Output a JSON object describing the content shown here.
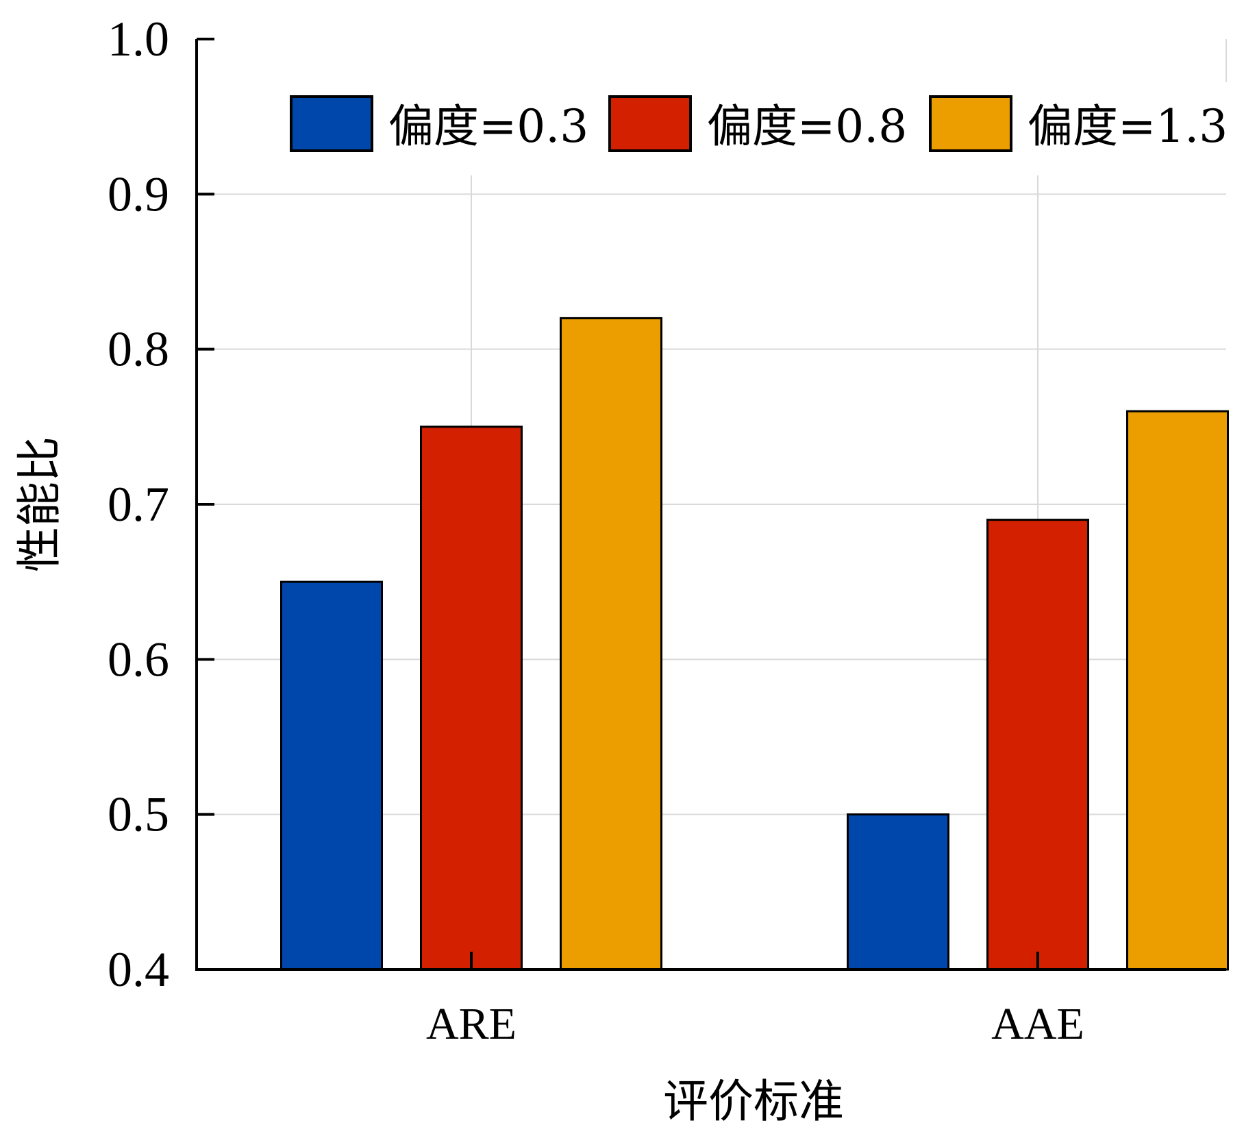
{
  "chart_data": {
    "type": "bar",
    "categories": [
      "ARE",
      "AAE"
    ],
    "series": [
      {
        "name": "偏度=0.3",
        "values": [
          0.65,
          0.5
        ],
        "color": "#0047AB"
      },
      {
        "name": "偏度=0.8",
        "values": [
          0.75,
          0.69
        ],
        "color": "#D22000"
      },
      {
        "name": "偏度=1.3",
        "values": [
          0.82,
          0.76
        ],
        "color": "#EC9D00"
      }
    ],
    "xlabel": "评价标准",
    "ylabel": "性能比",
    "ylim": [
      0.4,
      1.0
    ],
    "yticks": [
      "0.4",
      "0.5",
      "0.6",
      "0.7",
      "0.8",
      "0.9",
      "1.0"
    ],
    "grid": true,
    "legend_position": "top"
  }
}
